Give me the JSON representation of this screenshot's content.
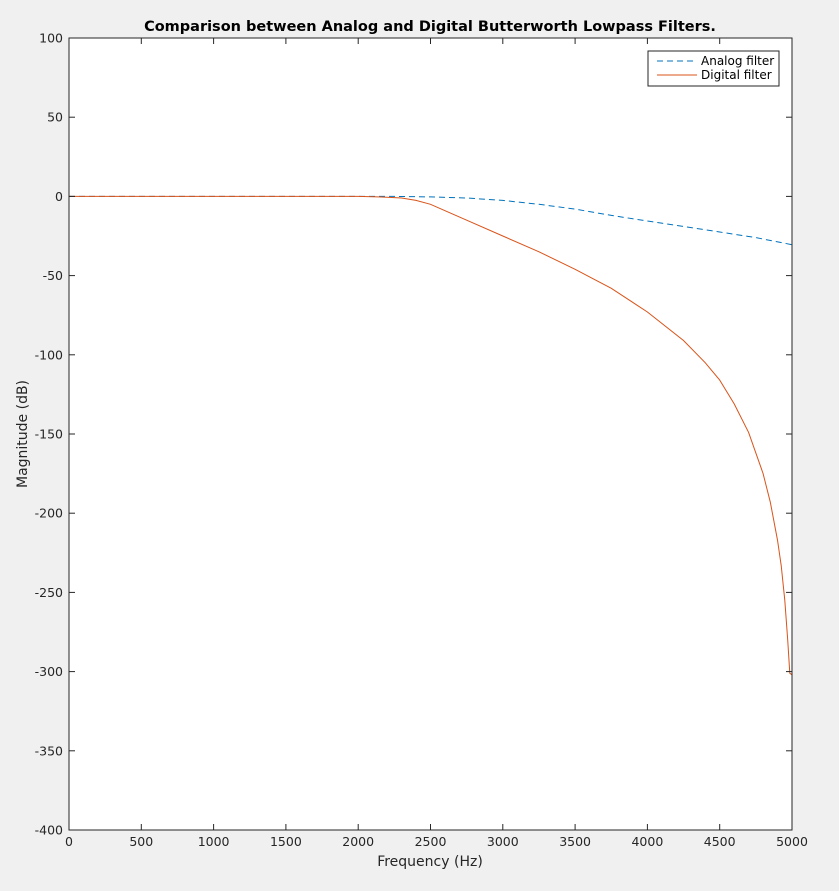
{
  "chart_data": {
    "type": "line",
    "title": "Comparison between Analog and Digital Butterworth Lowpass Filters.",
    "xlabel": "Frequency (Hz)",
    "ylabel": "Magnitude (dB)",
    "xlim": [
      0,
      5000
    ],
    "ylim": [
      -400,
      100
    ],
    "xticks": [
      0,
      500,
      1000,
      1500,
      2000,
      2500,
      3000,
      3500,
      4000,
      4500,
      5000
    ],
    "yticks": [
      100,
      50,
      0,
      -50,
      -100,
      -150,
      -200,
      -250,
      -300,
      -350,
      -400
    ],
    "grid": false,
    "legend_position": "top-right",
    "series": [
      {
        "name": "Analog filter",
        "color": "#0072bd",
        "line_style": "dashed",
        "x": [
          0,
          500,
          1000,
          1500,
          2000,
          2250,
          2500,
          2750,
          3000,
          3250,
          3500,
          3750,
          4000,
          4250,
          4500,
          4750,
          5000
        ],
        "y": [
          0,
          0,
          0,
          0,
          0,
          0,
          -0.3,
          -1.0,
          -2.5,
          -5.0,
          -8.0,
          -12.0,
          -15.5,
          -19.0,
          -22.5,
          -26.0,
          -30.5
        ]
      },
      {
        "name": "Digital filter",
        "color": "#d95319",
        "line_style": "solid",
        "x": [
          0,
          500,
          1000,
          1500,
          2000,
          2200,
          2300,
          2400,
          2500,
          2600,
          2750,
          3000,
          3250,
          3500,
          3750,
          4000,
          4250,
          4400,
          4500,
          4600,
          4700,
          4800,
          4850,
          4900,
          4925,
          4950,
          4970,
          4985,
          5000
        ],
        "y": [
          0,
          0,
          0,
          0,
          0,
          -0.5,
          -1.0,
          -2.5,
          -5.0,
          -9.0,
          -15.0,
          -25.0,
          -35.0,
          -46.0,
          -58.0,
          -73.0,
          -91.0,
          -105.0,
          -116.0,
          -131.0,
          -149.0,
          -175.0,
          -193.0,
          -217.0,
          -233.0,
          -255.0,
          -280.0,
          -301.0,
          -302.0
        ]
      }
    ]
  }
}
